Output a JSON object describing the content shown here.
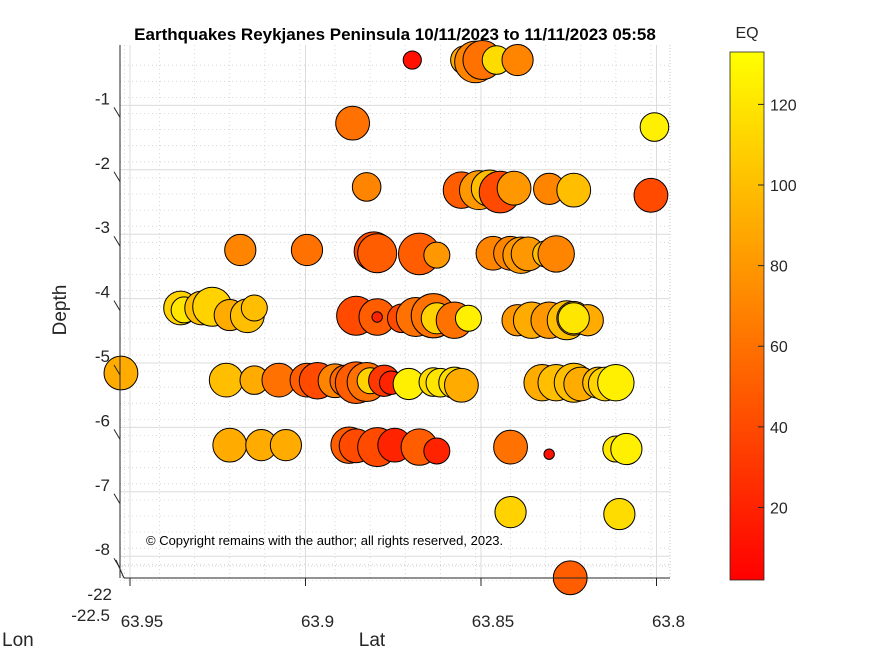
{
  "chart_data": {
    "type": "scatter",
    "title": "Earthquakes Reykjanes Peninsula 10/11/2023 to 11/11/2023 05:58",
    "xlabel": "Lat",
    "ylabel": "Depth",
    "zlabel": "Lon",
    "colorbar_label": "EQ",
    "annotation": "© Copyright remains with the author; all rights reserved, 2023.",
    "xlim": [
      63.956,
      63.8
    ],
    "ylim": [
      -8.6,
      -0.2
    ],
    "clim": [
      2,
      133
    ],
    "x_ticks": [
      "63.95",
      "63.9",
      "63.85",
      "63.8"
    ],
    "x_tick_values": [
      63.95,
      63.9,
      63.85,
      63.8
    ],
    "y_ticks": [
      "-1",
      "-2",
      "-3",
      "-4",
      "-5",
      "-6",
      "-7",
      "-8"
    ],
    "y_tick_values": [
      -1,
      -2,
      -3,
      -4,
      -5,
      -6,
      -7,
      -8
    ],
    "z_ticks": [
      "-22",
      "-22.5"
    ],
    "colorbar_ticks": [
      "20",
      "40",
      "60",
      "80",
      "100",
      "120"
    ],
    "colorbar_tick_values": [
      20,
      40,
      60,
      80,
      100,
      120
    ],
    "colormap": "autumn",
    "grid": true,
    "points_columns": [
      "lat",
      "depth",
      "eq",
      "size"
    ],
    "points": [
      [
        63.873,
        -0.42,
        10,
        0.7
      ],
      [
        63.858,
        -0.42,
        90,
        1.1
      ],
      [
        63.855,
        -0.45,
        70,
        1.6
      ],
      [
        63.853,
        -0.42,
        60,
        1.5
      ],
      [
        63.849,
        -0.42,
        115,
        1.1
      ],
      [
        63.843,
        -0.42,
        70,
        1.2
      ],
      [
        63.89,
        -1.4,
        60,
        1.3
      ],
      [
        63.804,
        -1.46,
        125,
        1.1
      ],
      [
        63.886,
        -2.39,
        70,
        1.1
      ],
      [
        63.859,
        -2.44,
        50,
        1.4
      ],
      [
        63.854,
        -2.44,
        80,
        1.5
      ],
      [
        63.851,
        -2.41,
        100,
        1.4
      ],
      [
        63.848,
        -2.47,
        40,
        1.6
      ],
      [
        63.844,
        -2.41,
        80,
        1.3
      ],
      [
        63.834,
        -2.42,
        70,
        1.2
      ],
      [
        63.827,
        -2.44,
        100,
        1.3
      ],
      [
        63.805,
        -2.52,
        40,
        1.3
      ],
      [
        63.922,
        -3.37,
        70,
        1.2
      ],
      [
        63.903,
        -3.37,
        60,
        1.2
      ],
      [
        63.884,
        -3.39,
        40,
        1.5
      ],
      [
        63.883,
        -3.42,
        50,
        1.5
      ],
      [
        63.871,
        -3.43,
        50,
        1.6
      ],
      [
        63.866,
        -3.45,
        80,
        1.0
      ],
      [
        63.85,
        -3.42,
        70,
        1.3
      ],
      [
        63.845,
        -3.42,
        70,
        1.3
      ],
      [
        63.842,
        -3.45,
        80,
        1.4
      ],
      [
        63.84,
        -3.43,
        80,
        1.3
      ],
      [
        63.835,
        -3.43,
        100,
        1.0
      ],
      [
        63.832,
        -3.43,
        70,
        1.4
      ],
      [
        63.939,
        -4.27,
        110,
        1.3
      ],
      [
        63.938,
        -4.3,
        120,
        1.0
      ],
      [
        63.933,
        -4.27,
        100,
        1.3
      ],
      [
        63.93,
        -4.25,
        110,
        1.5
      ],
      [
        63.925,
        -4.38,
        90,
        1.2
      ],
      [
        63.92,
        -4.39,
        100,
        1.3
      ],
      [
        63.918,
        -4.27,
        100,
        1.0
      ],
      [
        63.889,
        -4.39,
        40,
        1.5
      ],
      [
        63.883,
        -4.41,
        50,
        1.4
      ],
      [
        63.883,
        -4.41,
        20,
        0.4
      ],
      [
        63.876,
        -4.43,
        40,
        1.1
      ],
      [
        63.872,
        -4.41,
        60,
        1.5
      ],
      [
        63.867,
        -4.39,
        60,
        1.7
      ],
      [
        63.866,
        -4.43,
        110,
        1.2
      ],
      [
        63.861,
        -4.46,
        60,
        1.4
      ],
      [
        63.857,
        -4.43,
        125,
        1.0
      ],
      [
        63.843,
        -4.46,
        80,
        1.2
      ],
      [
        63.839,
        -4.46,
        90,
        1.4
      ],
      [
        63.834,
        -4.46,
        80,
        1.4
      ],
      [
        63.829,
        -4.46,
        100,
        1.5
      ],
      [
        63.827,
        -4.43,
        90,
        1.3
      ],
      [
        63.823,
        -4.46,
        90,
        1.2
      ],
      [
        63.827,
        -4.43,
        120,
        1.2
      ],
      [
        63.956,
        -5.28,
        90,
        1.3
      ],
      [
        63.926,
        -5.39,
        80,
        1.2
      ],
      [
        63.926,
        -5.39,
        100,
        1.3
      ],
      [
        63.918,
        -5.39,
        90,
        1.1
      ],
      [
        63.911,
        -5.39,
        60,
        1.3
      ],
      [
        63.903,
        -5.39,
        50,
        1.3
      ],
      [
        63.9,
        -5.4,
        40,
        1.4
      ],
      [
        63.895,
        -5.4,
        70,
        1.3
      ],
      [
        63.892,
        -5.4,
        55,
        1.2
      ],
      [
        63.889,
        -5.43,
        50,
        1.6
      ],
      [
        63.886,
        -5.42,
        60,
        1.5
      ],
      [
        63.885,
        -5.4,
        110,
        1.0
      ],
      [
        63.881,
        -5.4,
        30,
        1.2
      ],
      [
        63.879,
        -5.43,
        20,
        0.9
      ],
      [
        63.874,
        -5.45,
        125,
        1.2
      ],
      [
        63.867,
        -5.42,
        115,
        1.1
      ],
      [
        63.865,
        -5.43,
        120,
        1.1
      ],
      [
        63.861,
        -5.43,
        115,
        1.2
      ],
      [
        63.859,
        -5.47,
        90,
        1.3
      ],
      [
        63.836,
        -5.43,
        90,
        1.4
      ],
      [
        63.832,
        -5.43,
        100,
        1.4
      ],
      [
        63.827,
        -5.43,
        100,
        1.5
      ],
      [
        63.825,
        -5.45,
        90,
        1.3
      ],
      [
        63.82,
        -5.43,
        100,
        1.2
      ],
      [
        63.818,
        -5.45,
        110,
        1.3
      ],
      [
        63.815,
        -5.43,
        125,
        1.4
      ],
      [
        63.925,
        -6.4,
        90,
        1.3
      ],
      [
        63.916,
        -6.4,
        90,
        1.2
      ],
      [
        63.909,
        -6.4,
        90,
        1.2
      ],
      [
        63.891,
        -6.4,
        50,
        1.4
      ],
      [
        63.889,
        -6.41,
        40,
        1.3
      ],
      [
        63.883,
        -6.43,
        40,
        1.5
      ],
      [
        63.878,
        -6.4,
        20,
        1.3
      ],
      [
        63.871,
        -6.43,
        50,
        1.4
      ],
      [
        63.866,
        -6.49,
        20,
        1.0
      ],
      [
        63.845,
        -6.43,
        60,
        1.3
      ],
      [
        63.834,
        -6.54,
        10,
        0.4
      ],
      [
        63.815,
        -6.46,
        120,
        1.0
      ],
      [
        63.812,
        -6.46,
        125,
        1.2
      ],
      [
        63.845,
        -7.44,
        110,
        1.2
      ],
      [
        63.814,
        -7.47,
        115,
        1.2
      ],
      [
        63.828,
        -8.46,
        50,
        1.3
      ]
    ]
  }
}
